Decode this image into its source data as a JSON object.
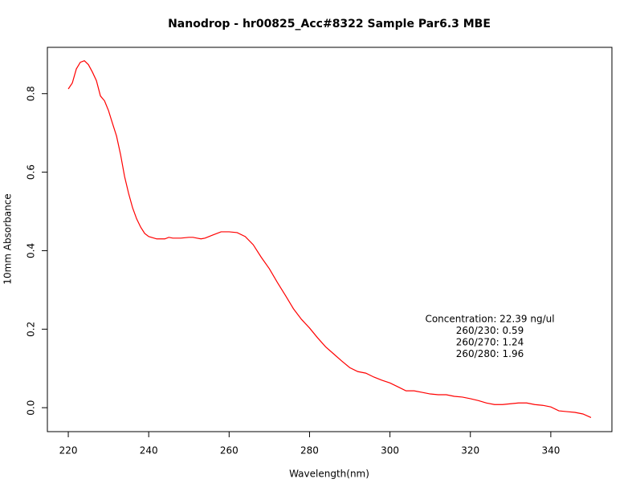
{
  "chart_data": {
    "type": "line",
    "title": "Nanodrop - hr00825_Acc#8322 Sample Par6.3 MBE",
    "x_label": "Wavelength(nm)",
    "y_label": "10mm Absorbance",
    "annotations": [
      "Concentration: 22.39 ng/ul",
      "260/230: 0.59",
      "260/270: 1.24",
      "260/280: 1.96"
    ],
    "xlim": [
      214.8,
      355.2
    ],
    "ylim": [
      -0.061,
      0.918
    ],
    "xticks": [
      220,
      240,
      260,
      280,
      300,
      320,
      340
    ],
    "yticks": [
      {
        "value": 0,
        "label": "0.0"
      },
      0.2,
      0.4,
      0.6,
      0.8
    ],
    "x": [
      220,
      221,
      222,
      223,
      224,
      225,
      226,
      227,
      228,
      229,
      230,
      231,
      232,
      233,
      234,
      235,
      236,
      237,
      238,
      239,
      240,
      242,
      244,
      245,
      246,
      248,
      250,
      251,
      252,
      253,
      254,
      256,
      258,
      260,
      262,
      264,
      266,
      268,
      270,
      272,
      274,
      276,
      278,
      280,
      282,
      284,
      286,
      288,
      290,
      292,
      294,
      296,
      298,
      300,
      302,
      304,
      306,
      308,
      310,
      312,
      314,
      316,
      318,
      320,
      322,
      324,
      326,
      328,
      330,
      332,
      334,
      336,
      338,
      340,
      342,
      344,
      346,
      348,
      350
    ],
    "series": [
      {
        "color": "#ff0000",
        "values": [
          0.812,
          0.827,
          0.863,
          0.88,
          0.884,
          0.874,
          0.855,
          0.833,
          0.794,
          0.782,
          0.757,
          0.724,
          0.692,
          0.645,
          0.589,
          0.546,
          0.509,
          0.481,
          0.46,
          0.444,
          0.436,
          0.43,
          0.43,
          0.434,
          0.432,
          0.432,
          0.434,
          0.434,
          0.432,
          0.43,
          0.432,
          0.44,
          0.448,
          0.448,
          0.446,
          0.436,
          0.415,
          0.383,
          0.354,
          0.319,
          0.286,
          0.252,
          0.225,
          0.203,
          0.178,
          0.155,
          0.137,
          0.119,
          0.102,
          0.092,
          0.088,
          0.078,
          0.07,
          0.063,
          0.053,
          0.043,
          0.043,
          0.039,
          0.035,
          0.033,
          0.033,
          0.029,
          0.027,
          0.023,
          0.018,
          0.012,
          0.008,
          0.008,
          0.01,
          0.012,
          0.012,
          0.008,
          0.006,
          0.002,
          -0.008,
          -0.01,
          -0.012,
          -0.016,
          -0.025
        ]
      }
    ]
  }
}
